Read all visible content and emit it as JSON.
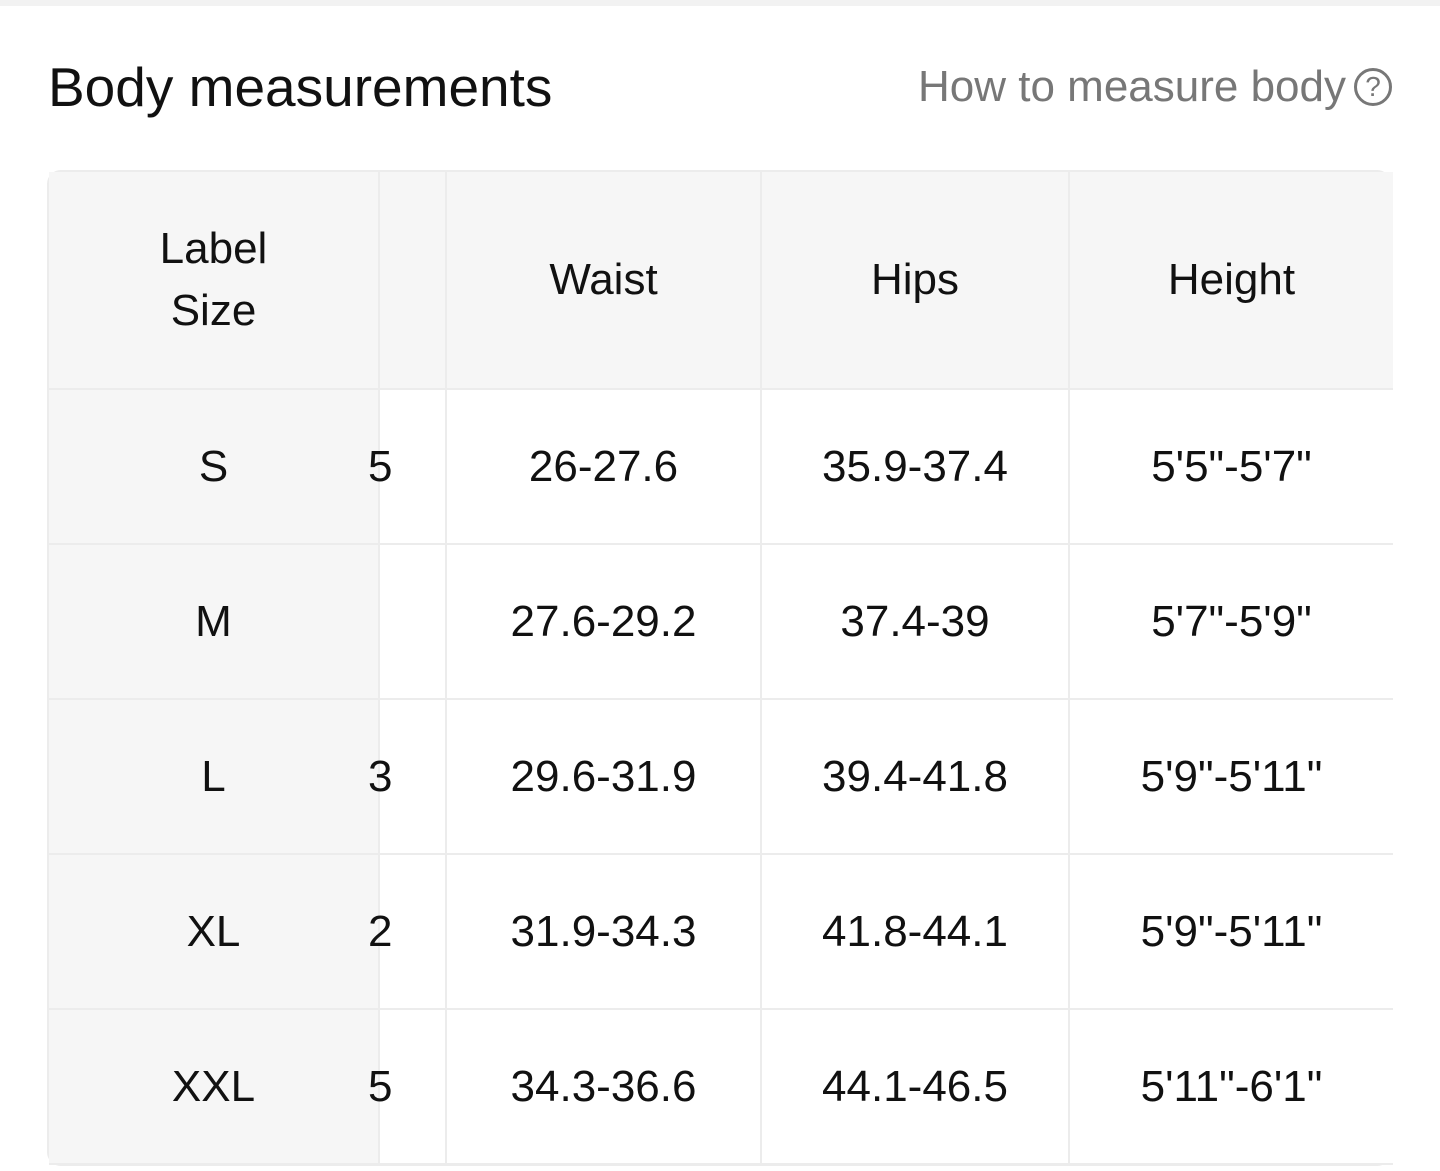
{
  "header": {
    "title": "Body measurements",
    "how_to_link": "How to measure body",
    "help_icon": "question-circle-icon"
  },
  "table": {
    "columns": [
      "Label\nSize",
      "",
      "Waist",
      "Hips",
      "Height"
    ],
    "rows": [
      {
        "size": "S",
        "partial": "5",
        "waist": "26-27.6",
        "hips": "35.9-37.4",
        "height": "5'5\"-5'7\""
      },
      {
        "size": "M",
        "partial": "",
        "waist": "27.6-29.2",
        "hips": "37.4-39",
        "height": "5'7\"-5'9\""
      },
      {
        "size": "L",
        "partial": "3",
        "waist": "29.6-31.9",
        "hips": "39.4-41.8",
        "height": "5'9\"-5'11\""
      },
      {
        "size": "XL",
        "partial": "2",
        "waist": "31.9-34.3",
        "hips": "41.8-44.1",
        "height": "5'9\"-5'11\""
      },
      {
        "size": "XXL",
        "partial": "5",
        "waist": "34.3-36.6",
        "hips": "44.1-46.5",
        "height": "5'11\"-6'1\""
      }
    ]
  },
  "colors": {
    "header_bg": "#f6f6f6",
    "border": "#ececec",
    "link": "#777777"
  }
}
